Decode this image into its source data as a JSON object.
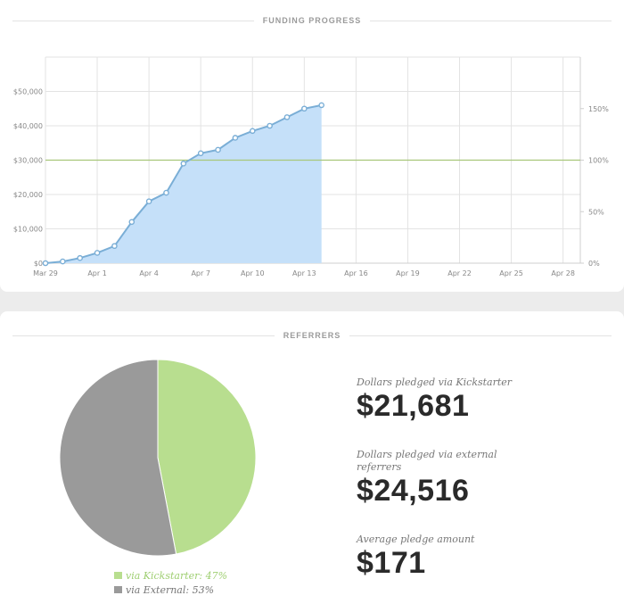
{
  "funding": {
    "header": "FUNDING PROGRESS",
    "colors": {
      "area": "#c5e0f9",
      "line": "#7aaed6",
      "goal": "#a8c77a",
      "grid": "#e3e3e3"
    }
  },
  "chart_data": [
    {
      "type": "area",
      "x": [
        "Mar 29",
        "Mar 30",
        "Mar 31",
        "Apr 1",
        "Apr 2",
        "Apr 3",
        "Apr 4",
        "Apr 5",
        "Apr 6",
        "Apr 7",
        "Apr 8",
        "Apr 9",
        "Apr 10",
        "Apr 11",
        "Apr 12",
        "Apr 13",
        "Apr 14"
      ],
      "series": [
        {
          "values": [
            0,
            500,
            1500,
            3000,
            5000,
            12000,
            18000,
            20500,
            29000,
            32000,
            33000,
            36500,
            38500,
            40000,
            42500,
            45000,
            46000
          ]
        }
      ],
      "x_ticks": [
        "Mar 29",
        "Apr 1",
        "Apr 4",
        "Apr 7",
        "Apr 10",
        "Apr 13",
        "Apr 16",
        "Apr 19",
        "Apr 22",
        "Apr 25",
        "Apr 28"
      ],
      "y_ticks_left": [
        "$0",
        "$10,000",
        "$20,000",
        "$30,000",
        "$40,000",
        "$50,000"
      ],
      "y_ticks_right": [
        "0%",
        "50%",
        "100%",
        "150%"
      ],
      "ylim": [
        0,
        60000
      ],
      "goal": 30000,
      "x_range": [
        "Mar 29",
        "Apr 29"
      ],
      "grid": true
    },
    {
      "type": "pie",
      "slices": [
        {
          "label": "via Kickstarter",
          "percent": "47%",
          "value": 47,
          "color": "#b8de8f"
        },
        {
          "label": "via External",
          "percent": "53%",
          "value": 53,
          "color": "#9a9a9a"
        }
      ]
    }
  ],
  "referrers": {
    "header": "REFERRERS",
    "legend": [
      {
        "text": "via Kickstarter: 47%",
        "color": "#9fcf72",
        "swatch": "#b8de8f"
      },
      {
        "text": "via External: 53%",
        "color": "#777777",
        "swatch": "#9a9a9a"
      }
    ],
    "stats": [
      {
        "label": "Dollars pledged via Kickstarter",
        "value": "$21,681"
      },
      {
        "label": "Dollars pledged via external referrers",
        "value": "$24,516"
      },
      {
        "label": "Average pledge amount",
        "value": "$171"
      }
    ]
  }
}
